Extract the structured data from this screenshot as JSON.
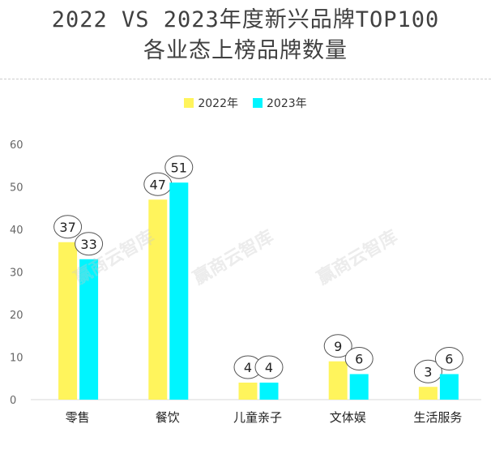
{
  "chart_data": {
    "type": "bar",
    "title_lines": [
      "2022 VS 2023年度新兴品牌TOP100",
      "各业态上榜品牌数量"
    ],
    "categories": [
      "零售",
      "餐饮",
      "儿童亲子",
      "文体娱",
      "生活服务"
    ],
    "series": [
      {
        "name": "2022年",
        "values": [
          37,
          47,
          4,
          9,
          3
        ],
        "color": "#FFF45C"
      },
      {
        "name": "2023年",
        "values": [
          33,
          51,
          4,
          6,
          6
        ],
        "color": "#00F5FF"
      }
    ],
    "ylim": [
      0,
      60
    ],
    "yticks": [
      0,
      10,
      20,
      30,
      40,
      50,
      60
    ],
    "xlabel": "",
    "ylabel": "",
    "legend_position": "top-center",
    "watermark": "赢商云智库"
  }
}
